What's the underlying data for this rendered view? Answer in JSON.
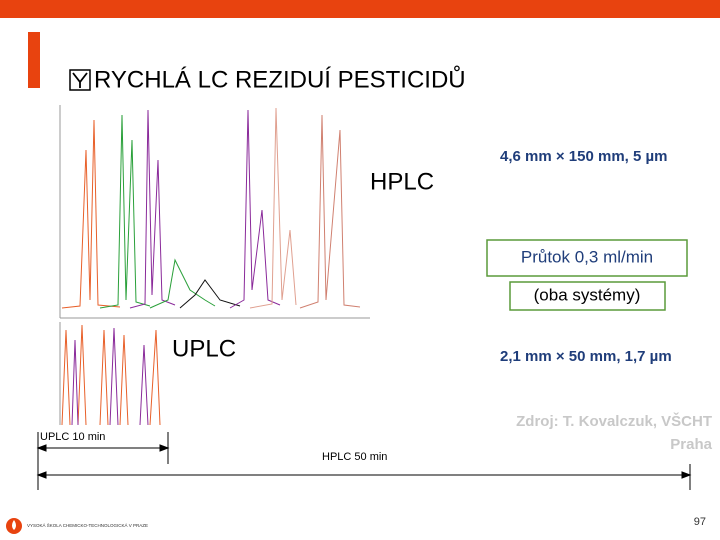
{
  "header": {
    "title": "RYCHLÁ LC REZIDUÍ PESTICIDŮ"
  },
  "hplc": {
    "label": "HPLC",
    "column": "4,6 mm × 150 mm, 5 µm"
  },
  "flow": {
    "rate": "Průtok 0,3 ml/min",
    "note": "(oba systémy)"
  },
  "uplc": {
    "label": "UPLC",
    "column": "2,1 mm × 50 mm, 1,7 µm"
  },
  "source": {
    "line1": "Zdroj: T. Kovalczuk, VŠCHT",
    "line2": "Praha"
  },
  "timeline": {
    "uplc": "UPLC 10 min",
    "hplc": "HPLC 50 min"
  },
  "footer": {
    "page": "97",
    "logo": "VYSOKÁ ŠKOLA CHEMICKO-TECHNOLOGICKÁ V PRAZE"
  }
}
